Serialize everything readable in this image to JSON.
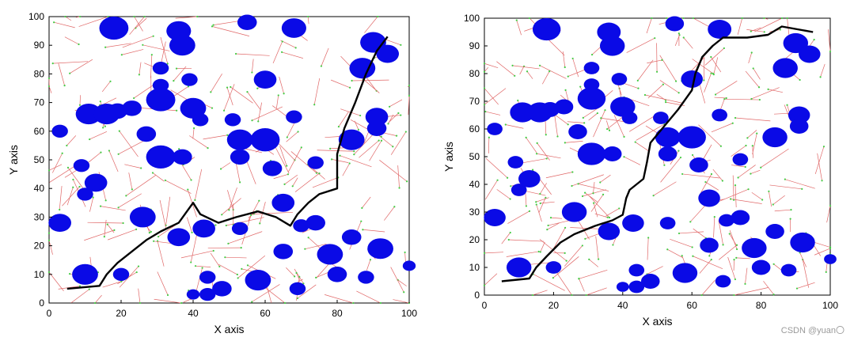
{
  "chart_data": [
    {
      "type": "scatter",
      "title": "",
      "xlabel": "X axis",
      "ylabel": "Y axis",
      "xlim": [
        0,
        100
      ],
      "ylim": [
        0,
        100
      ],
      "x_ticks": [
        0,
        20,
        40,
        60,
        80,
        100
      ],
      "y_ticks": [
        0,
        10,
        20,
        30,
        40,
        50,
        60,
        70,
        80,
        90,
        100
      ],
      "grid": false,
      "colors": {
        "obstacle": "#0a0ae6",
        "tree": "#e06666",
        "node": "#44cc44",
        "path": "#000000"
      },
      "obstacles": [
        [
          18,
          96,
          4.5
        ],
        [
          36,
          95,
          3.8
        ],
        [
          55,
          98,
          3
        ],
        [
          68,
          96,
          3.8
        ],
        [
          90,
          91,
          4
        ],
        [
          37,
          90,
          4
        ],
        [
          94,
          87,
          3.5
        ],
        [
          31,
          82,
          2.5
        ],
        [
          87,
          82,
          4
        ],
        [
          60,
          78,
          3.5
        ],
        [
          31,
          76,
          2.5
        ],
        [
          39,
          78,
          2.5
        ],
        [
          11,
          66,
          4
        ],
        [
          16,
          66,
          4
        ],
        [
          19,
          67,
          3
        ],
        [
          23,
          68,
          3
        ],
        [
          31,
          71,
          4.5
        ],
        [
          40,
          68,
          4
        ],
        [
          42,
          64,
          2.5
        ],
        [
          51,
          64,
          2.5
        ],
        [
          68,
          65,
          2.5
        ],
        [
          91,
          65,
          3.5
        ],
        [
          91,
          61,
          3
        ],
        [
          3,
          60,
          2.5
        ],
        [
          27,
          59,
          3
        ],
        [
          53,
          57,
          4
        ],
        [
          60,
          57,
          4.5
        ],
        [
          84,
          57,
          4
        ],
        [
          31,
          51,
          4.5
        ],
        [
          37,
          51,
          3
        ],
        [
          53,
          51,
          3
        ],
        [
          62,
          47,
          3
        ],
        [
          9,
          48,
          2.5
        ],
        [
          74,
          49,
          2.5
        ],
        [
          13,
          42,
          3.5
        ],
        [
          10,
          38,
          2.5
        ],
        [
          65,
          35,
          3.5
        ],
        [
          26,
          30,
          4
        ],
        [
          74,
          28,
          3
        ],
        [
          3,
          28,
          3.5
        ],
        [
          43,
          26,
          3.5
        ],
        [
          53,
          26,
          2.5
        ],
        [
          70,
          27,
          2.5
        ],
        [
          36,
          23,
          3.5
        ],
        [
          84,
          23,
          3
        ],
        [
          92,
          19,
          4
        ],
        [
          65,
          18,
          3
        ],
        [
          78,
          17,
          4
        ],
        [
          100,
          13,
          2
        ],
        [
          10,
          10,
          4
        ],
        [
          20,
          10,
          2.5
        ],
        [
          44,
          9,
          2.5
        ],
        [
          58,
          8,
          4
        ],
        [
          80,
          10,
          3
        ],
        [
          88,
          9,
          2.5
        ],
        [
          48,
          5,
          3
        ],
        [
          44,
          3,
          2.5
        ],
        [
          69,
          5,
          2.5
        ],
        [
          40,
          3,
          2
        ]
      ],
      "paths": [
        [
          [
            5,
            5
          ],
          [
            13,
            6
          ],
          [
            15,
            10
          ],
          [
            18,
            14
          ],
          [
            22,
            19
          ],
          [
            26,
            22
          ],
          [
            32,
            25
          ],
          [
            37,
            27
          ],
          [
            40,
            29
          ],
          [
            41,
            35
          ],
          [
            42,
            38
          ],
          [
            46,
            42
          ],
          [
            47,
            48
          ],
          [
            48,
            55
          ],
          [
            52,
            61
          ],
          [
            56,
            67
          ],
          [
            60,
            74
          ],
          [
            61,
            80
          ],
          [
            63,
            86
          ],
          [
            66,
            90
          ],
          [
            69,
            93
          ],
          [
            76,
            93
          ],
          [
            82,
            94
          ],
          [
            86,
            97
          ],
          [
            95,
            95
          ]
        ],
        [
          [
            5,
            5
          ],
          [
            14,
            6
          ],
          [
            16,
            10
          ],
          [
            19,
            14
          ],
          [
            23,
            18
          ],
          [
            27,
            22
          ],
          [
            31,
            25
          ],
          [
            36,
            28
          ],
          [
            40,
            35
          ],
          [
            42,
            31
          ],
          [
            47,
            28
          ],
          [
            52,
            30
          ],
          [
            58,
            32
          ],
          [
            63,
            30
          ],
          [
            67,
            27
          ],
          [
            69,
            31
          ],
          [
            72,
            35
          ],
          [
            75,
            38
          ],
          [
            80,
            40
          ],
          [
            80,
            52
          ],
          [
            82,
            61
          ],
          [
            85,
            70
          ],
          [
            88,
            80
          ],
          [
            91,
            88
          ],
          [
            94,
            93
          ]
        ]
      ]
    }
  ],
  "watermark": "CSDN @yuan〇"
}
